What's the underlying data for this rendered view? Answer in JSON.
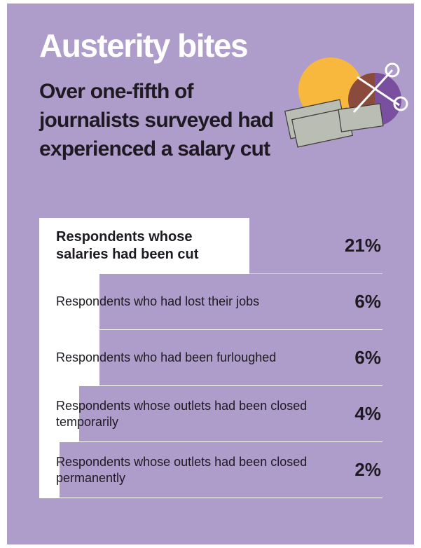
{
  "chart_data": {
    "type": "bar",
    "orientation": "horizontal",
    "title": "Austerity bites",
    "subtitle": "Over one-fifth of journalists surveyed had experienced a salary cut",
    "categories": [
      "Respondents whose salaries had been cut",
      "Respondents who had lost their jobs",
      "Respondents who had been furloughed",
      "Respondents whose outlets had been closed temporarily",
      "Respondents whose outlets had been closed permanently"
    ],
    "values": [
      21,
      6,
      6,
      4,
      2
    ],
    "value_labels": [
      "21%",
      "6%",
      "6%",
      "4%",
      "2%"
    ],
    "color": "#ffffff"
  }
}
